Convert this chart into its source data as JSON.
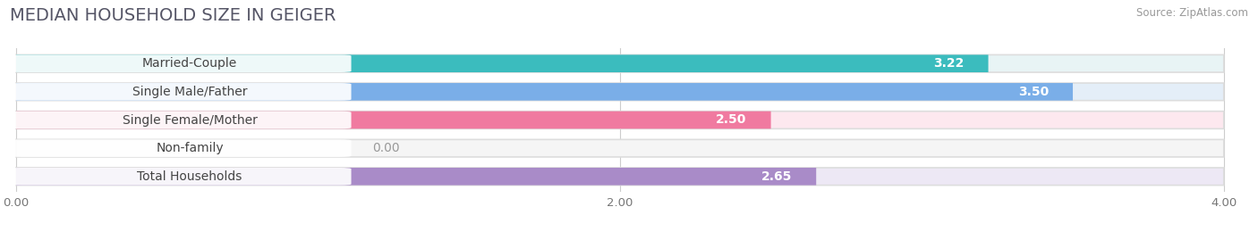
{
  "title": "MEDIAN HOUSEHOLD SIZE IN GEIGER",
  "source": "Source: ZipAtlas.com",
  "categories": [
    "Married-Couple",
    "Single Male/Father",
    "Single Female/Mother",
    "Non-family",
    "Total Households"
  ],
  "values": [
    3.22,
    3.5,
    2.5,
    0.0,
    2.65
  ],
  "bar_colors": [
    "#3bbcbe",
    "#7aaee8",
    "#f07aa0",
    "#f5c98a",
    "#a98bc8"
  ],
  "bar_bg_colors": [
    "#e8f4f5",
    "#e4eef8",
    "#fde8ef",
    "#f5f5f5",
    "#ede8f5"
  ],
  "xlim": [
    0,
    4.0
  ],
  "xticks": [
    0.0,
    2.0,
    4.0
  ],
  "xtick_labels": [
    "0.00",
    "2.00",
    "4.00"
  ],
  "title_fontsize": 14,
  "label_fontsize": 10,
  "value_fontsize": 10,
  "background_color": "#ffffff"
}
